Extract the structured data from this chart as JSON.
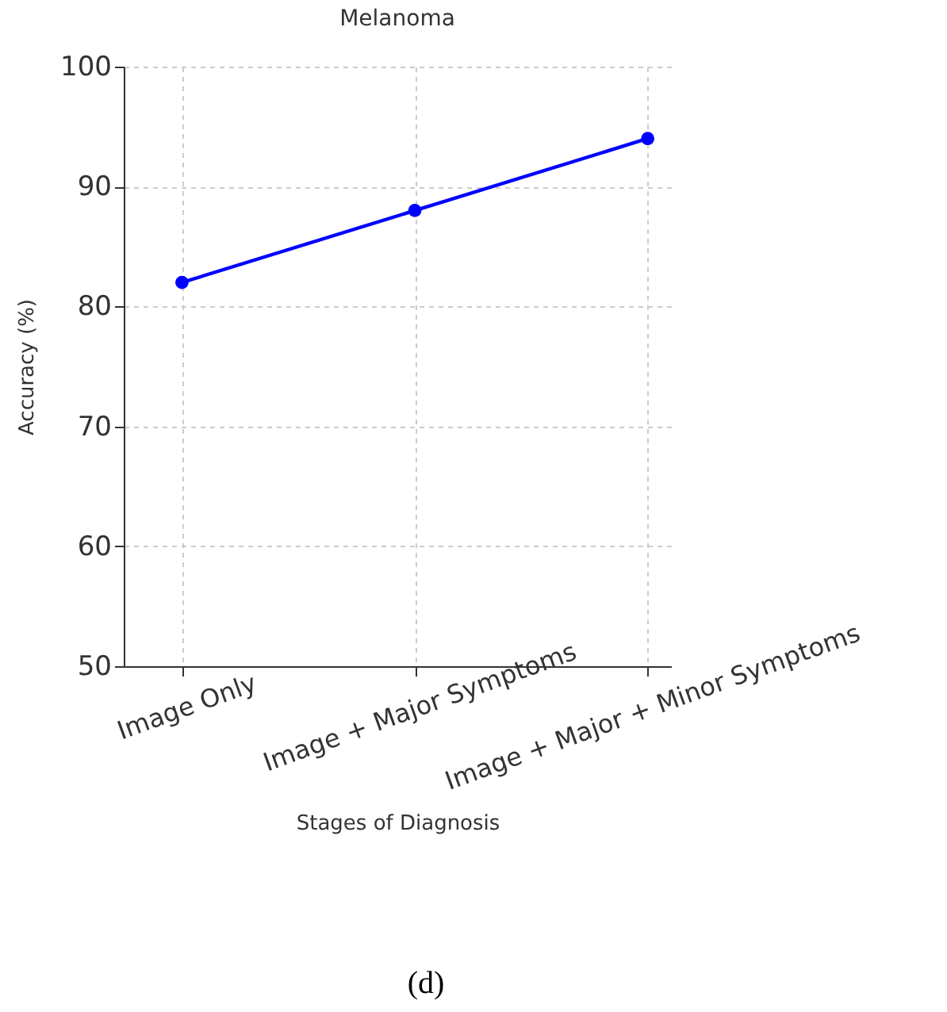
{
  "chart_data": {
    "type": "line",
    "title": "Melanoma",
    "xlabel": "Stages of Diagnosis",
    "ylabel": "Accuracy (%)",
    "categories": [
      "Image Only",
      "Image + Major Symptoms",
      "Image + Major + Minor Symptoms"
    ],
    "series": [
      {
        "color": "#0000ff",
        "values": [
          82,
          88,
          94
        ]
      }
    ],
    "ylim": [
      50,
      100
    ],
    "yticks": [
      50,
      60,
      70,
      80,
      90,
      100
    ],
    "grid": true,
    "marker": "circle",
    "line_style": "solid",
    "annotations": [
      "(d)"
    ]
  }
}
